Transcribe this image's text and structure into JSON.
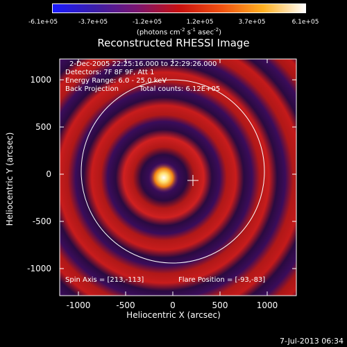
{
  "colorbar": {
    "tick_labels": [
      "-6.1e+05",
      "-3.7e+05",
      "-1.2e+05",
      "1.2e+05",
      "3.7e+05",
      "6.1e+05"
    ],
    "units_prefix": "(photons cm",
    "units_exp1": "-2",
    "units_mid": " s",
    "units_exp2": "-1",
    "units_mid2": " asec",
    "units_exp3": "-2",
    "units_suffix": ")",
    "colors": [
      "#1a1aff",
      "#3b1ea8",
      "#7a1570",
      "#c81010",
      "#f05010",
      "#ffb020",
      "#ffffff"
    ]
  },
  "title": "Reconstructed RHESSI Image",
  "annotations": {
    "time_range": "2-Dec-2005 22:25:16.000 to 22:29:26.000",
    "detectors": "Detectors: 7F 8F 9F, Att 1",
    "energy_range": "Energy Range: 6.0 - 25.0 keV",
    "method": "Back Projection",
    "total_counts": "Total counts: 6.12E+05",
    "spin_axis": "Spin Axis = [213,-113]",
    "flare_position": "Flare Position = [-93,-83]"
  },
  "axes": {
    "xlabel": "Heliocentric X (arcsec)",
    "ylabel": "Heliocentric Y (arcsec)",
    "x_ticks": [
      "-1000",
      "-500",
      "0",
      "500",
      "1000"
    ],
    "y_ticks": [
      "1000",
      "500",
      "0",
      "-500",
      "-1000"
    ],
    "x_range": [
      -1280,
      1280
    ],
    "y_range": [
      -1280,
      1280
    ]
  },
  "image": {
    "colormap": "red-temperature",
    "source_center": [
      -93,
      -83
    ],
    "spin_axis_marker": [
      213,
      -113
    ],
    "solar_limb_radius": 975
  },
  "timestamp": "7-Jul-2013 06:34"
}
